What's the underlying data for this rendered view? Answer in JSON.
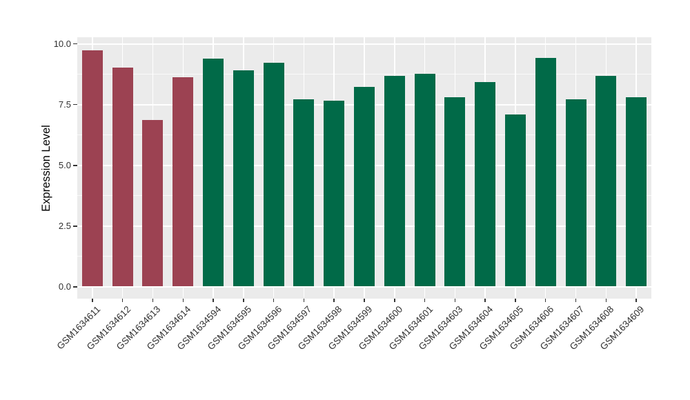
{
  "chart_data": {
    "type": "bar",
    "title": "",
    "ylabel": "Expression Level",
    "xlabel": "",
    "categories": [
      "GSM1634611",
      "GSM1634612",
      "GSM1634613",
      "GSM1634614",
      "GSM1634594",
      "GSM1634595",
      "GSM1634596",
      "GSM1634597",
      "GSM1634598",
      "GSM1634599",
      "GSM1634600",
      "GSM1634601",
      "GSM1634603",
      "GSM1634604",
      "GSM1634605",
      "GSM1634606",
      "GSM1634607",
      "GSM1634608",
      "GSM1634609"
    ],
    "values": [
      9.72,
      9.03,
      6.87,
      8.61,
      9.4,
      8.92,
      9.22,
      7.71,
      7.66,
      8.23,
      8.68,
      8.77,
      7.81,
      8.43,
      7.1,
      9.41,
      7.71,
      8.68,
      7.81
    ],
    "bar_groups": [
      "red",
      "red",
      "red",
      "red",
      "green",
      "green",
      "green",
      "green",
      "green",
      "green",
      "green",
      "green",
      "green",
      "green",
      "green",
      "green",
      "green",
      "green",
      "green"
    ],
    "palette": {
      "red": "#9C4252",
      "green": "#016A48"
    },
    "yticks": {
      "values": [
        0,
        2.5,
        5,
        7.5,
        10
      ],
      "labels": [
        "0.0",
        "2.5",
        "5.0",
        "7.5",
        "10.0"
      ]
    },
    "ylim": [
      0,
      10.25
    ],
    "grid": "major-and-minor",
    "legend": "none",
    "panel_background": "#EBEBEB",
    "gridline_color": "#FFFFFF",
    "tick_text_color": "#303030"
  }
}
